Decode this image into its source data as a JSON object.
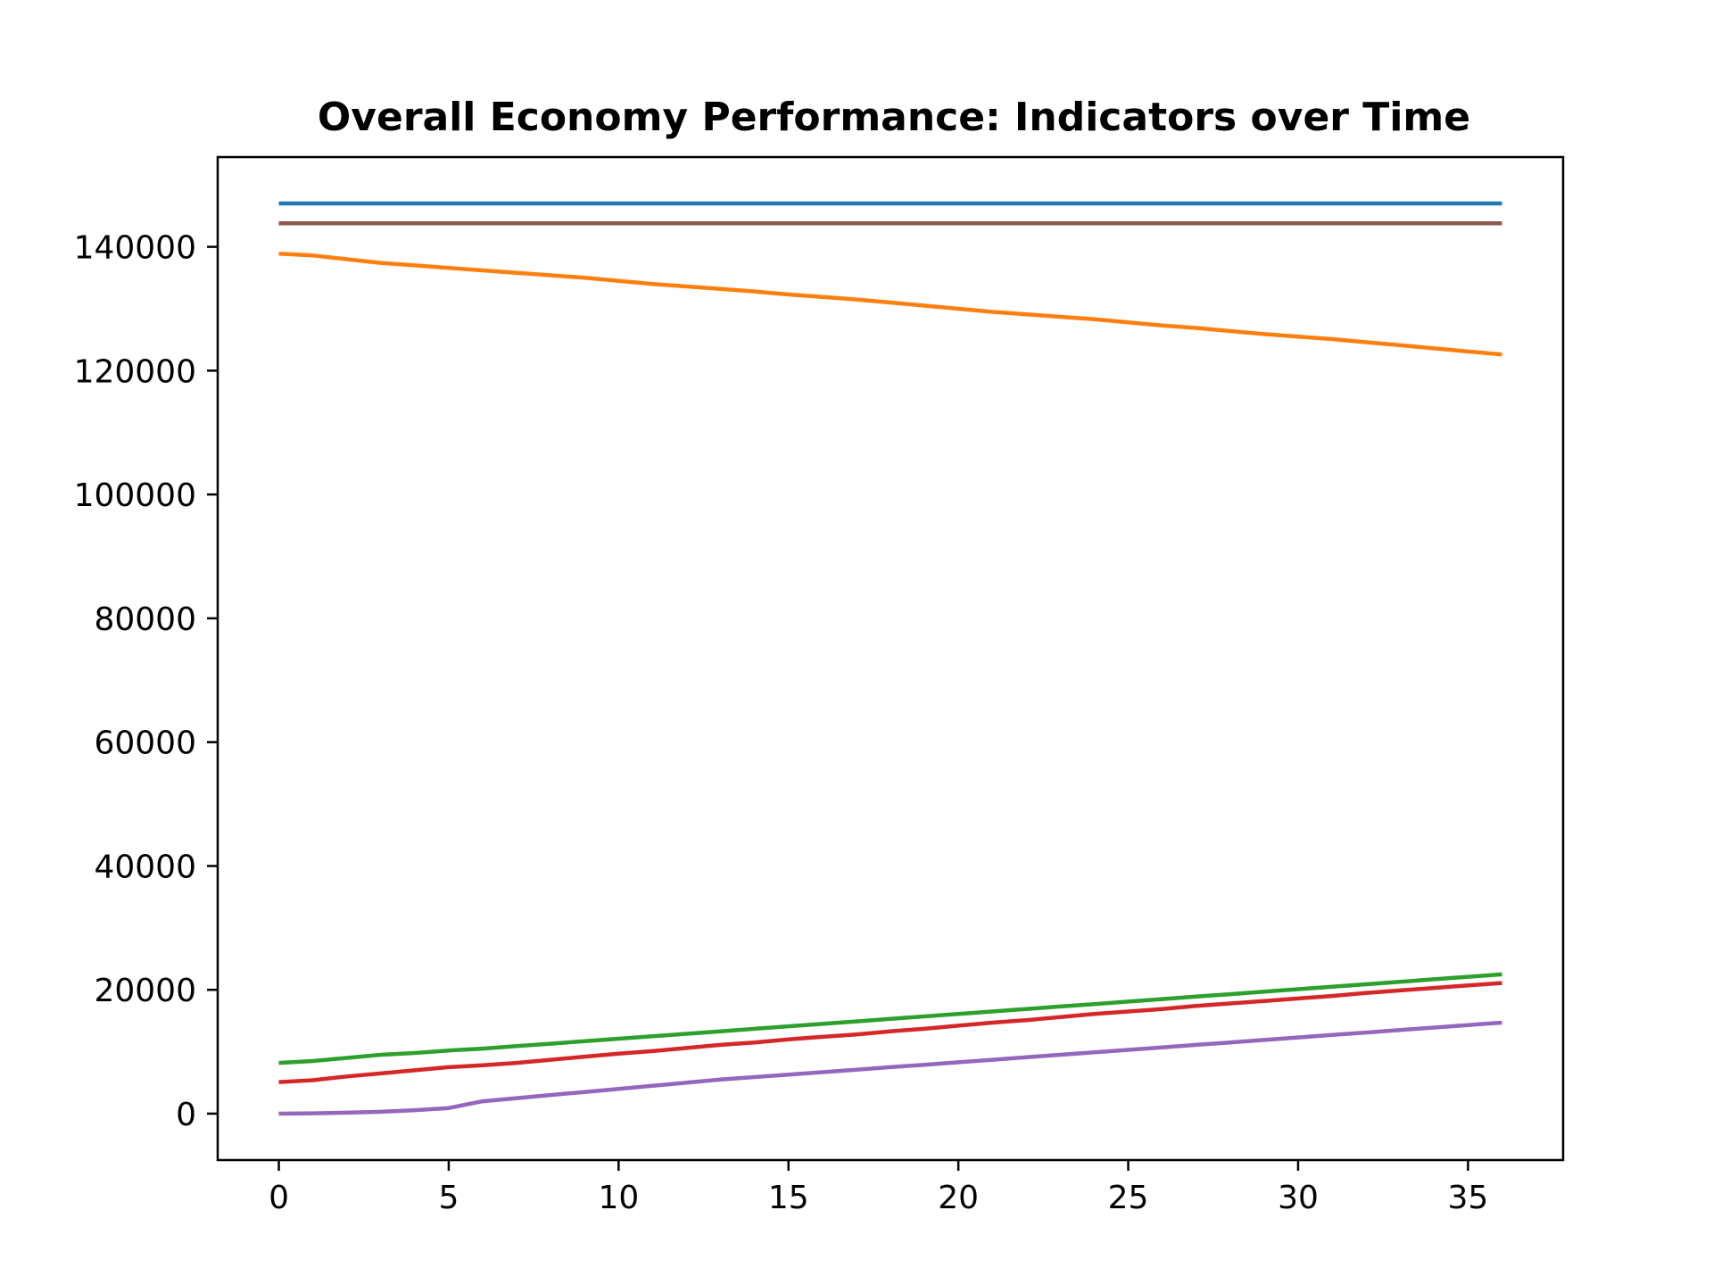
{
  "chart_data": {
    "type": "line",
    "title": "Overall Economy Performance: Indicators over Time",
    "xlabel": "",
    "ylabel": "",
    "xlim": [
      -1.8,
      37.8
    ],
    "ylim": [
      -7500,
      154500
    ],
    "grid": false,
    "legend": "none",
    "x_ticks": [
      0,
      5,
      10,
      15,
      20,
      25,
      30,
      35
    ],
    "y_ticks": [
      0,
      20000,
      40000,
      60000,
      80000,
      100000,
      120000,
      140000
    ],
    "x": [
      0,
      1,
      2,
      3,
      4,
      5,
      6,
      7,
      8,
      9,
      10,
      11,
      12,
      13,
      14,
      15,
      16,
      17,
      18,
      19,
      20,
      21,
      22,
      23,
      24,
      25,
      26,
      27,
      28,
      29,
      30,
      31,
      32,
      33,
      34,
      35,
      36
    ],
    "series": [
      {
        "color": "#1f77b4",
        "values": [
          147000,
          147000,
          147000,
          147000,
          147000,
          147000,
          147000,
          147000,
          147000,
          147000,
          147000,
          147000,
          147000,
          147000,
          147000,
          147000,
          147000,
          147000,
          147000,
          147000,
          147000,
          147000,
          147000,
          147000,
          147000,
          147000,
          147000,
          147000,
          147000,
          147000,
          147000,
          147000,
          147000,
          147000,
          147000,
          147000,
          147000
        ]
      },
      {
        "color": "#8c564b",
        "values": [
          143800,
          143800,
          143800,
          143800,
          143800,
          143800,
          143800,
          143800,
          143800,
          143800,
          143800,
          143800,
          143800,
          143800,
          143800,
          143800,
          143800,
          143800,
          143800,
          143800,
          143800,
          143800,
          143800,
          143800,
          143800,
          143800,
          143800,
          143800,
          143800,
          143800,
          143800,
          143800,
          143800,
          143800,
          143800,
          143800,
          143800
        ]
      },
      {
        "color": "#ff7f0e",
        "values": [
          138900,
          138600,
          138000,
          137400,
          137000,
          136600,
          136200,
          135800,
          135400,
          135000,
          134500,
          134000,
          133600,
          133200,
          132800,
          132300,
          131900,
          131500,
          131000,
          130500,
          130000,
          129500,
          129100,
          128700,
          128300,
          127800,
          127300,
          126900,
          126400,
          125900,
          125500,
          125100,
          124600,
          124100,
          123600,
          123100,
          122600
        ]
      },
      {
        "color": "#2ca02c",
        "values": [
          8200,
          8500,
          9000,
          9500,
          9800,
          10200,
          10500,
          10900,
          11300,
          11700,
          12100,
          12500,
          12900,
          13300,
          13700,
          14100,
          14500,
          14900,
          15300,
          15700,
          16100,
          16500,
          16900,
          17300,
          17700,
          18100,
          18500,
          18900,
          19300,
          19700,
          20100,
          20500,
          20900,
          21300,
          21700,
          22100,
          22500
        ]
      },
      {
        "color": "#d62728",
        "values": [
          5100,
          5400,
          6000,
          6500,
          7000,
          7500,
          7800,
          8200,
          8700,
          9200,
          9700,
          10100,
          10600,
          11100,
          11500,
          12000,
          12400,
          12800,
          13300,
          13700,
          14200,
          14700,
          15100,
          15600,
          16100,
          16500,
          16900,
          17400,
          17800,
          18200,
          18600,
          19000,
          19500,
          19900,
          20300,
          20700,
          21100
        ]
      },
      {
        "color": "#9467bd",
        "values": [
          0,
          50,
          150,
          300,
          550,
          900,
          2000,
          2500,
          3000,
          3500,
          4000,
          4500,
          5000,
          5500,
          5900,
          6300,
          6700,
          7100,
          7500,
          7900,
          8300,
          8700,
          9100,
          9500,
          9900,
          10300,
          10700,
          11100,
          11500,
          11900,
          12300,
          12700,
          13100,
          13500,
          13900,
          14300,
          14700
        ]
      }
    ]
  }
}
